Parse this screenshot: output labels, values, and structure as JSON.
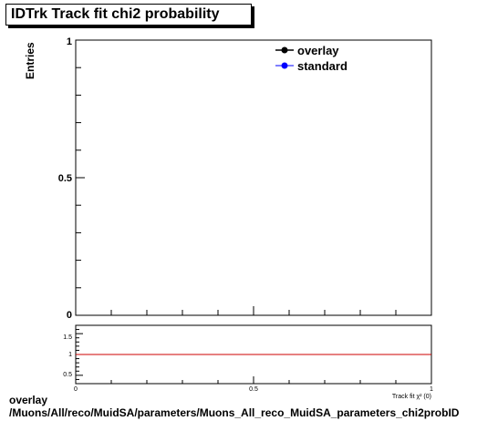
{
  "title": "IDTrk Track fit chi2 probability",
  "chart_data": [
    {
      "type": "line",
      "ylabel": "Entries",
      "xlim": [
        0,
        1
      ],
      "ylim": [
        0,
        1
      ],
      "yticks": [
        "0",
        "0.5",
        "1"
      ],
      "legend_position": "top-right",
      "series": [
        {
          "name": "overlay",
          "color": "#000000",
          "values": []
        },
        {
          "name": "standard",
          "color": "#0000ff",
          "values": []
        }
      ]
    },
    {
      "type": "line",
      "xlabel": "Track fit χ² (0)",
      "xlim": [
        0,
        1
      ],
      "ylim": [
        0.3,
        1.7
      ],
      "xticks": [
        "0",
        "0.5",
        "1"
      ],
      "yticks": [
        "0.5",
        "1",
        "1.5"
      ],
      "reference_line": {
        "y": 1,
        "color": "#cc0000"
      }
    }
  ],
  "footer": {
    "line1": "overlay",
    "line2": "/Muons/All/reco/MuidSA/parameters/Muons_All_reco_MuidSA_parameters_chi2probID"
  }
}
